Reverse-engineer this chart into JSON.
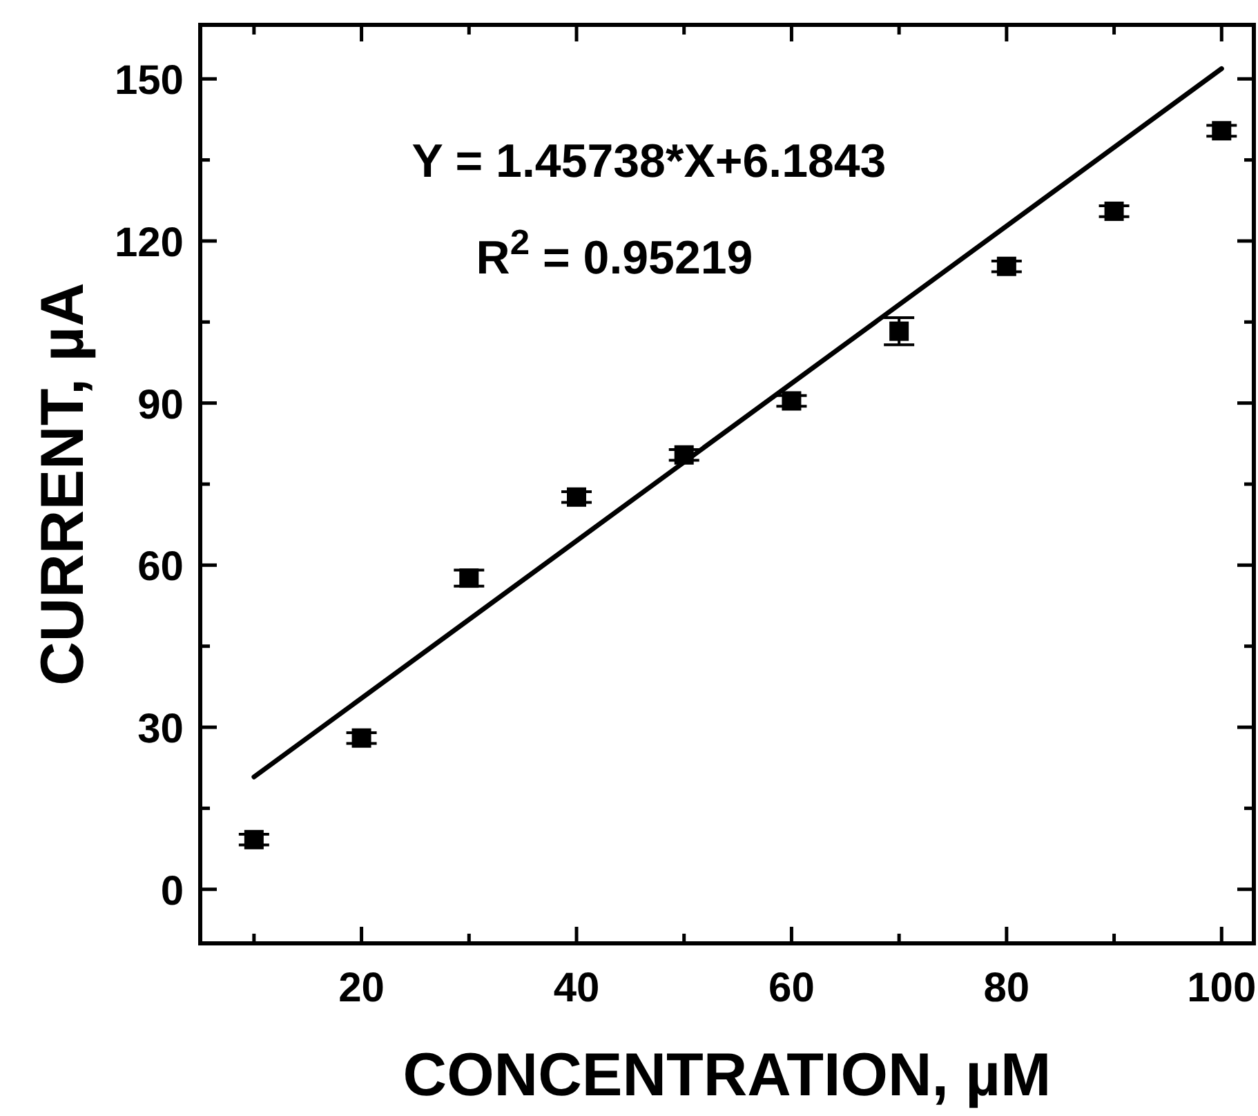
{
  "chart_data": {
    "type": "scatter",
    "xlabel": "CONCENTRATION, µM",
    "ylabel": "CURRENT, µA",
    "x": [
      10,
      20,
      30,
      40,
      50,
      60,
      70,
      80,
      90,
      100
    ],
    "series": [
      {
        "color": "#000000",
        "marker": "square",
        "values": [
          9.2,
          28,
          57.6,
          72.6,
          80.4,
          90.4,
          103.3,
          115.3,
          125.5,
          140.4
        ],
        "errors": [
          1,
          1,
          1.5,
          1,
          1,
          1,
          2.5,
          1,
          1,
          1
        ]
      },
      {
        "type": "line",
        "color": "#000000",
        "x": [
          10,
          100
        ],
        "values": [
          20.8,
          151.9
        ],
        "line_style": "solid",
        "marker": "none"
      }
    ],
    "xlim": [
      5,
      103
    ],
    "ylim": [
      -10,
      160
    ],
    "xticks": [
      {
        "value": 10,
        "label": null
      },
      20,
      {
        "value": 30,
        "label": null
      },
      40,
      {
        "value": 50,
        "label": null
      },
      60,
      {
        "value": 70,
        "label": null
      },
      80,
      {
        "value": 90,
        "label": null
      },
      100
    ],
    "yticks": [
      0,
      {
        "value": 15,
        "label": null
      },
      30,
      {
        "value": 45,
        "label": null
      },
      60,
      {
        "value": 75,
        "label": null
      },
      90,
      {
        "value": 105,
        "label": null
      },
      120,
      {
        "value": 135,
        "label": null
      },
      150
    ],
    "annotations": [
      "Y = 1.45738*X+6.1843",
      "R$^{2}$ = 0.95219"
    ],
    "grid": false
  }
}
